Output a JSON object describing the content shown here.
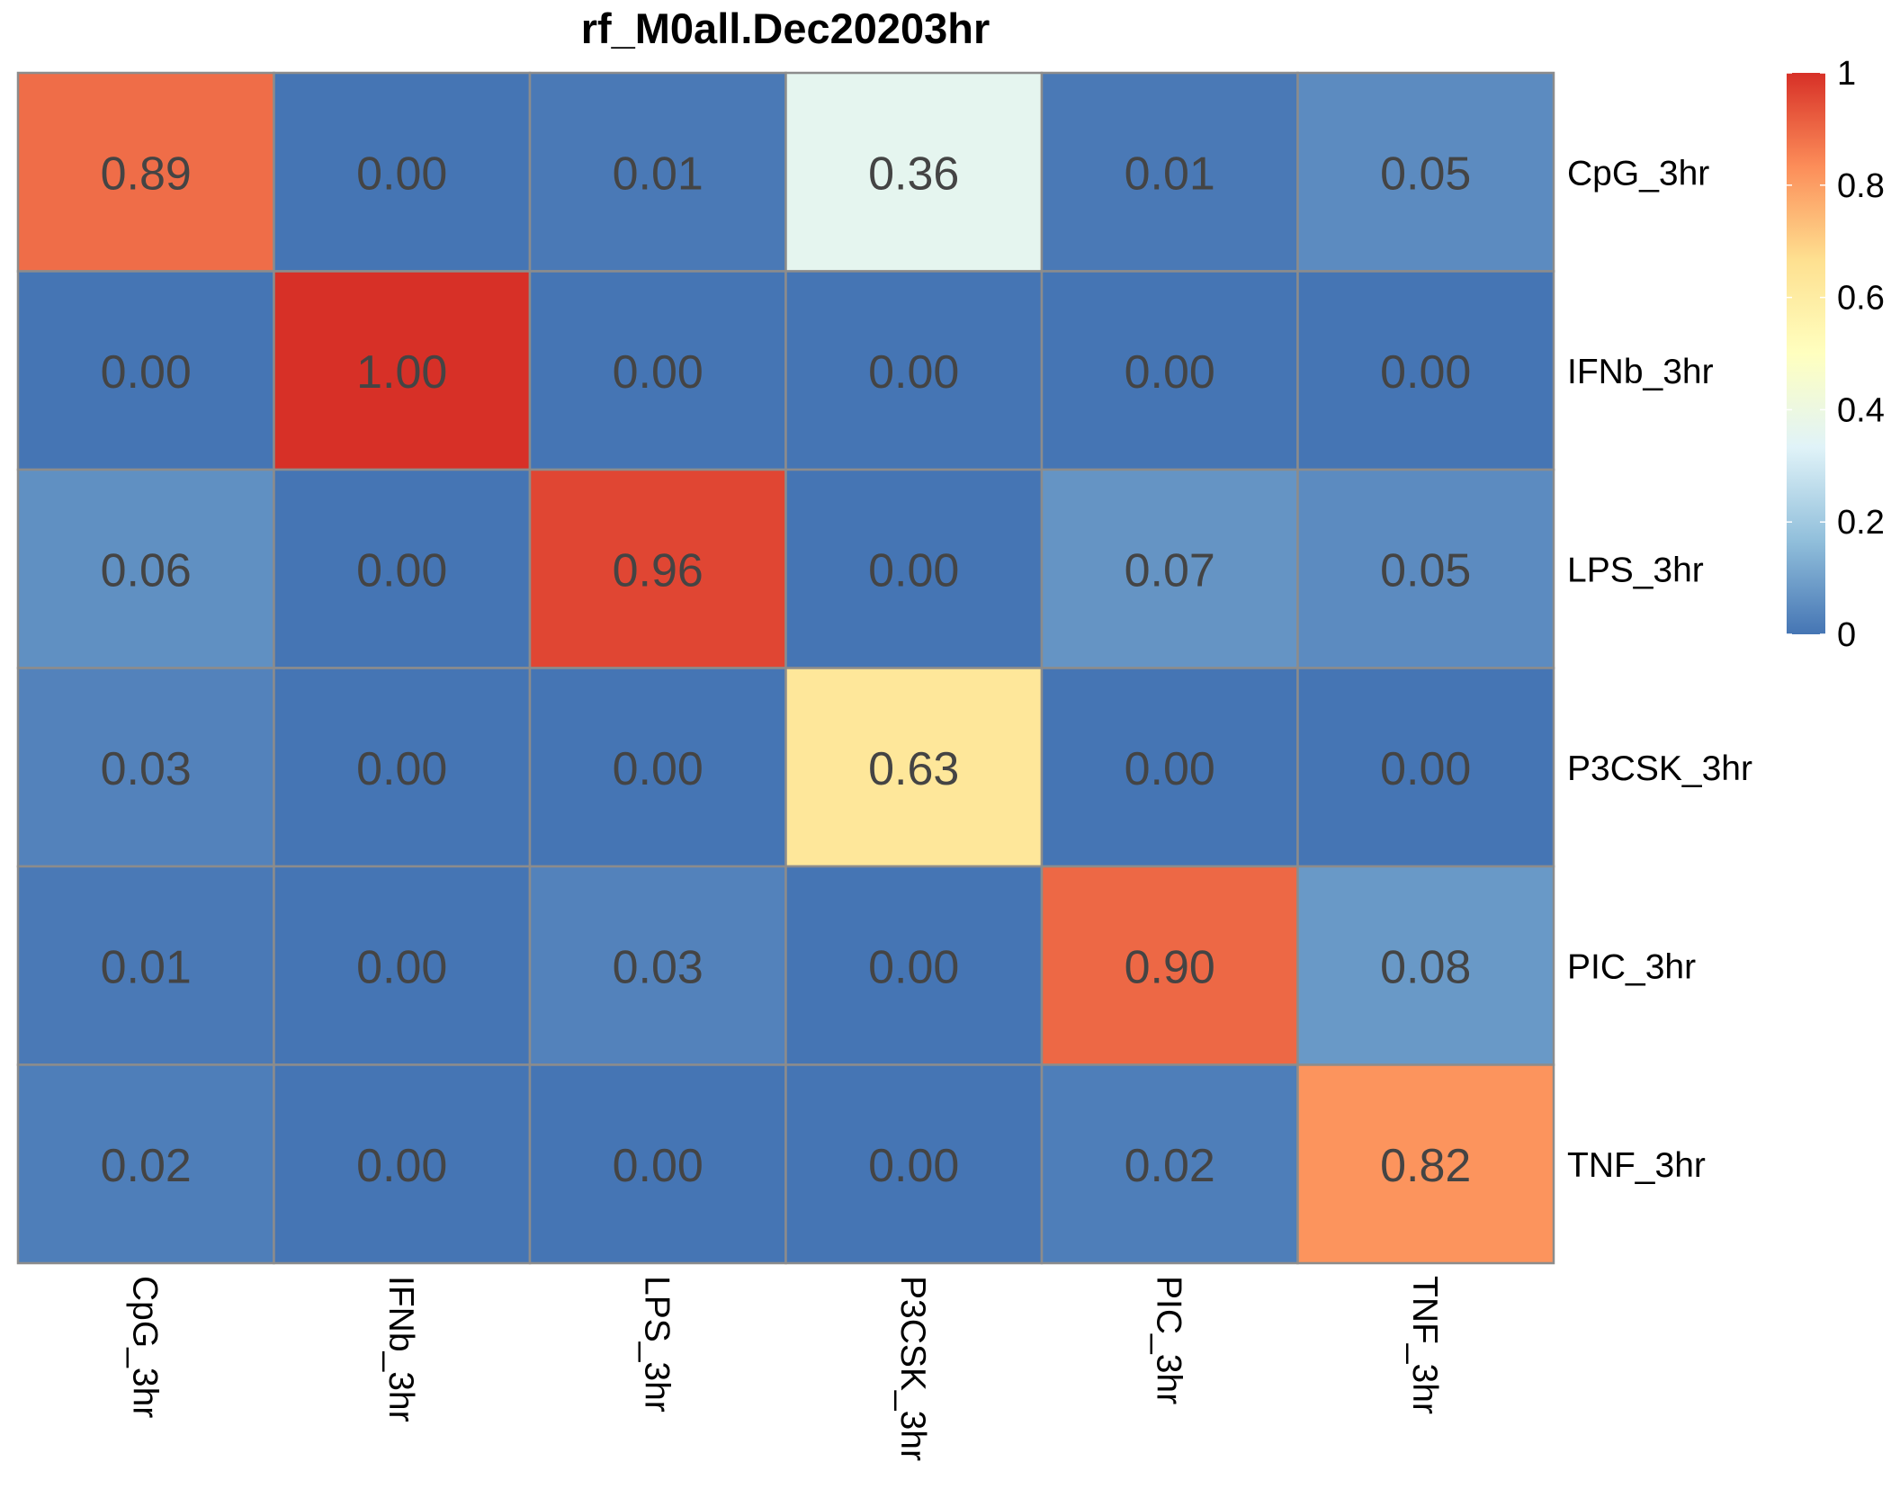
{
  "chart_data": {
    "type": "heatmap",
    "title": "rf_M0all.Dec20203hr",
    "rows": [
      "CpG_3hr",
      "IFNb_3hr",
      "LPS_3hr",
      "P3CSK_3hr",
      "PIC_3hr",
      "TNF_3hr"
    ],
    "columns": [
      "CpG_3hr",
      "IFNb_3hr",
      "LPS_3hr",
      "P3CSK_3hr",
      "PIC_3hr",
      "TNF_3hr"
    ],
    "values": [
      [
        0.89,
        0.0,
        0.01,
        0.36,
        0.01,
        0.05
      ],
      [
        0.0,
        1.0,
        0.0,
        0.0,
        0.0,
        0.0
      ],
      [
        0.06,
        0.0,
        0.96,
        0.0,
        0.07,
        0.05
      ],
      [
        0.03,
        0.0,
        0.0,
        0.63,
        0.0,
        0.0
      ],
      [
        0.01,
        0.0,
        0.03,
        0.0,
        0.9,
        0.08
      ],
      [
        0.02,
        0.0,
        0.0,
        0.0,
        0.02,
        0.82
      ]
    ],
    "value_labels": [
      [
        "0.89",
        "0.00",
        "0.01",
        "0.36",
        "0.01",
        "0.05"
      ],
      [
        "0.00",
        "1.00",
        "0.00",
        "0.00",
        "0.00",
        "0.00"
      ],
      [
        "0.06",
        "0.00",
        "0.96",
        "0.00",
        "0.07",
        "0.05"
      ],
      [
        "0.03",
        "0.00",
        "0.00",
        "0.63",
        "0.00",
        "0.00"
      ],
      [
        "0.01",
        "0.00",
        "0.03",
        "0.00",
        "0.90",
        "0.08"
      ],
      [
        "0.02",
        "0.00",
        "0.00",
        "0.00",
        "0.02",
        "0.82"
      ]
    ],
    "color_range": [
      0,
      1
    ],
    "colorbar": {
      "ticks": [
        0,
        0.2,
        0.4,
        0.6,
        0.8,
        1
      ],
      "tick_labels": [
        "0",
        "0.2",
        "0.4",
        "0.6",
        "0.8",
        "1"
      ],
      "placement": "top-right"
    },
    "palette": [
      "#4575b4",
      "#91bfdb",
      "#e0f3f8",
      "#ffffbf",
      "#fee090",
      "#fc8d59",
      "#d73027"
    ],
    "cell_border_color": "#8c8c8c",
    "cell_text_color": "#444444",
    "row_labels_position": "right",
    "column_labels_position": "bottom",
    "column_labels_rotation": "vertical"
  }
}
